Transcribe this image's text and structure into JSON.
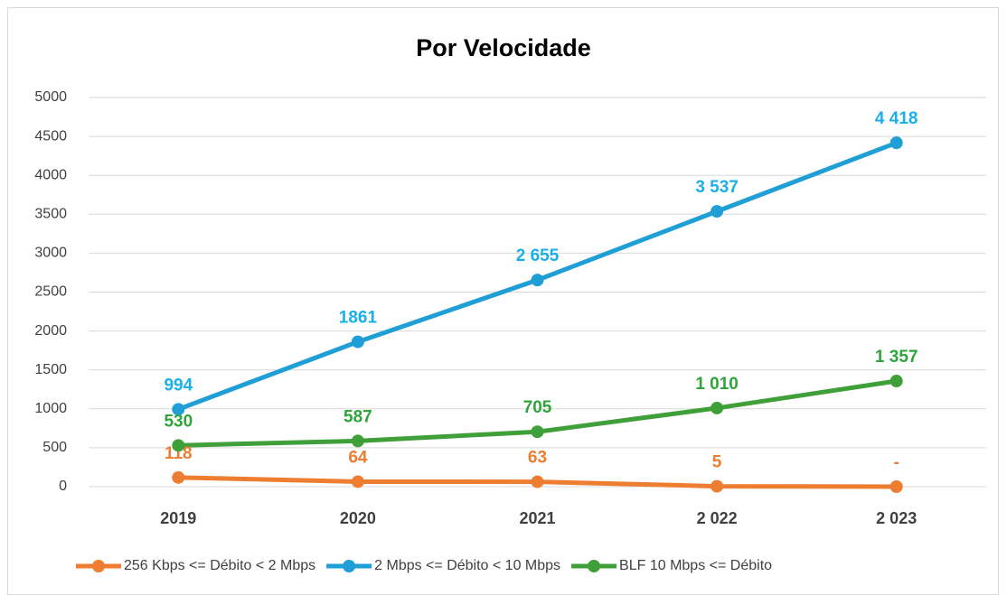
{
  "chart_data": {
    "type": "line",
    "title": "Por Velocidade",
    "categories": [
      "2019",
      "2020",
      "2021",
      "2 022",
      "2 023"
    ],
    "series": [
      {
        "name": "256 Kbps <= Débito < 2 Mbps",
        "color": "#ed7d31",
        "label_color": "#ed7d31",
        "values": [
          118,
          64,
          63,
          5,
          0
        ],
        "value_labels": [
          "118",
          "64",
          "63",
          "5",
          "-"
        ]
      },
      {
        "name": "2 Mbps <= Débito < 10 Mbps",
        "color": "#1f9fd5",
        "label_color": "#1ab0e8",
        "values": [
          994,
          1861,
          2655,
          3537,
          4418
        ],
        "value_labels": [
          "994",
          "1861",
          "2 655",
          "3 537",
          "4 418"
        ]
      },
      {
        "name": "BLF 10 Mbps <= Débito",
        "color": "#3f9f38",
        "label_color": "#2ea43a",
        "values": [
          530,
          587,
          705,
          1010,
          1357
        ],
        "value_labels": [
          "530",
          "587",
          "705",
          "1 010",
          "1 357"
        ]
      }
    ],
    "ylim": [
      0,
      5000
    ],
    "yticks": [
      0,
      500,
      1000,
      1500,
      2000,
      2500,
      3000,
      3500,
      4000,
      4500,
      5000
    ],
    "grid": true,
    "legend": "bottom"
  }
}
